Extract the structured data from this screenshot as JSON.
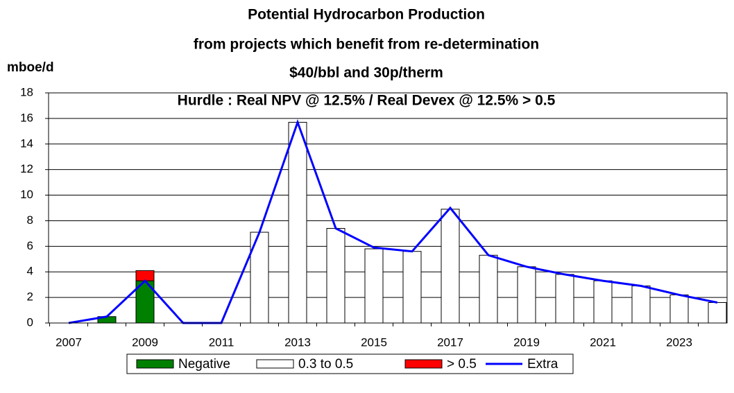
{
  "chart_data": {
    "type": "stacked_bar_line",
    "title": "Potential Hydrocarbon Production",
    "subtitle": [
      "from projects which benefit from re-determination",
      "$40/bbl and 30p/therm"
    ],
    "annotation": "Hurdle : Real NPV @ 12.5% / Real Devex @ 12.5% > 0.5",
    "y_label": "mboe/d",
    "categories": [
      "2007",
      null,
      "2009",
      null,
      "2011",
      null,
      "2013",
      null,
      "2015",
      null,
      "2017",
      null,
      "2019",
      null,
      "2021",
      null,
      "2023",
      null
    ],
    "series": [
      {
        "name": "Negative",
        "type": "bar",
        "color": "#008000",
        "values": [
          null,
          0.5,
          3.3,
          null,
          null,
          null,
          null,
          null,
          null,
          null,
          null,
          null,
          null,
          null,
          null,
          null,
          null,
          null
        ]
      },
      {
        "name": "0.3 to 0.5",
        "type": "bar",
        "color": "#ffffff",
        "values": [
          null,
          null,
          null,
          null,
          null,
          7.1,
          15.7,
          7.4,
          5.8,
          5.6,
          8.9,
          5.3,
          4.4,
          3.8,
          3.3,
          2.9,
          2.2,
          1.6
        ]
      },
      {
        "name": "> 0.5",
        "type": "bar",
        "color": "#ff0000",
        "values": [
          null,
          null,
          0.8,
          null,
          null,
          null,
          null,
          null,
          null,
          null,
          null,
          null,
          null,
          null,
          null,
          null,
          null,
          null
        ]
      },
      {
        "name": "Extra",
        "type": "line",
        "color": "#0000ff",
        "values": [
          0,
          0.5,
          3.3,
          0,
          0,
          7.1,
          15.7,
          7.4,
          5.9,
          5.6,
          9.0,
          5.3,
          4.4,
          3.8,
          3.3,
          2.9,
          2.2,
          1.6
        ]
      }
    ],
    "ylim": [
      0,
      18
    ],
    "yticks": [
      0,
      2,
      4,
      6,
      8,
      10,
      12,
      14,
      16,
      18
    ],
    "grid": true,
    "legend": "bottom"
  }
}
